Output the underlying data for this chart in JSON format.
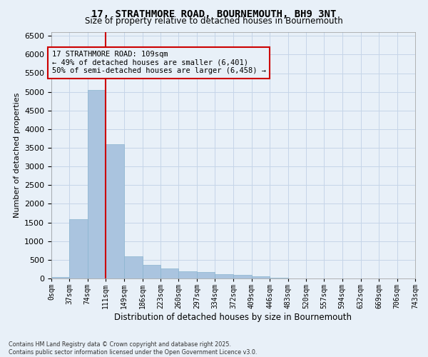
{
  "title_line1": "17, STRATHMORE ROAD, BOURNEMOUTH, BH9 3NT",
  "title_line2": "Size of property relative to detached houses in Bournemouth",
  "xlabel": "Distribution of detached houses by size in Bournemouth",
  "ylabel": "Number of detached properties",
  "footnote1": "Contains HM Land Registry data © Crown copyright and database right 2025.",
  "footnote2": "Contains public sector information licensed under the Open Government Licence v3.0.",
  "annotation_line1": "17 STRATHMORE ROAD: 109sqm",
  "annotation_line2": "← 49% of detached houses are smaller (6,401)",
  "annotation_line3": "50% of semi-detached houses are larger (6,458) →",
  "bar_edges": [
    0,
    37,
    74,
    111,
    149,
    186,
    223,
    260,
    297,
    334,
    372,
    409,
    446,
    483,
    520,
    557,
    594,
    632,
    669,
    706,
    743
  ],
  "bar_labels": [
    "0sqm",
    "37sqm",
    "74sqm",
    "111sqm",
    "149sqm",
    "186sqm",
    "223sqm",
    "260sqm",
    "297sqm",
    "334sqm",
    "372sqm",
    "409sqm",
    "446sqm",
    "483sqm",
    "520sqm",
    "557sqm",
    "594sqm",
    "632sqm",
    "669sqm",
    "706sqm",
    "743sqm"
  ],
  "bar_heights": [
    30,
    1580,
    5050,
    3600,
    600,
    370,
    260,
    200,
    170,
    120,
    100,
    50,
    20,
    0,
    0,
    0,
    0,
    0,
    0,
    0
  ],
  "bar_color": "#aac4df",
  "bar_edgecolor": "#8ab4cf",
  "vline_x": 111,
  "vline_color": "#cc0000",
  "ylim_max": 6600,
  "yticks": [
    0,
    500,
    1000,
    1500,
    2000,
    2500,
    3000,
    3500,
    4000,
    4500,
    5000,
    5500,
    6000,
    6500
  ],
  "grid_color": "#c5d5e8",
  "bg_color": "#e8f0f8",
  "annotation_box_color": "#cc0000",
  "annotation_box_bg": "#e8f0f8"
}
